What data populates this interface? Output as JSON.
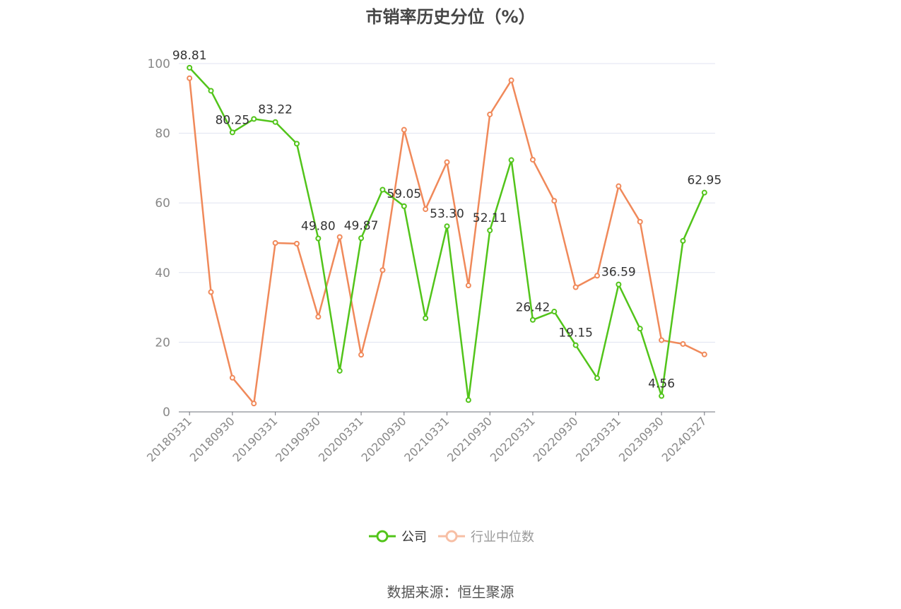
{
  "title": "市销率历史分位（%）",
  "source": "数据来源：恒生聚源",
  "legend": {
    "company": "公司",
    "industry": "行业中位数"
  },
  "colors": {
    "company": "#52c41a",
    "industry": "#f0895a",
    "grid": "#e0e3f0",
    "axis": "#6e7079",
    "tick": "#888888",
    "label": "#333333"
  },
  "chart_data": {
    "type": "line",
    "ylim": [
      0,
      100
    ],
    "yticks": [
      0,
      20,
      40,
      60,
      80,
      100
    ],
    "x": [
      "20180331",
      "20180630",
      "20180930",
      "20181231",
      "20190331",
      "20190630",
      "20190930",
      "20191231",
      "20200331",
      "20200630",
      "20200930",
      "20201231",
      "20210331",
      "20210630",
      "20210930",
      "20211231",
      "20220331",
      "20220630",
      "20220930",
      "20221231",
      "20230331",
      "20230630",
      "20230930",
      "20231231",
      "20240327"
    ],
    "x_tick_labels": [
      "20180331",
      "20180930",
      "20190331",
      "20190930",
      "20200331",
      "20200930",
      "20210331",
      "20210930",
      "20220331",
      "20220930",
      "20230331",
      "20230930",
      "20240327"
    ],
    "series": [
      {
        "name": "公司",
        "values": [
          98.81,
          92.2,
          80.25,
          84.1,
          83.22,
          77.0,
          49.8,
          11.8,
          49.87,
          63.8,
          59.05,
          26.9,
          53.3,
          3.4,
          52.11,
          72.3,
          26.42,
          28.8,
          19.15,
          9.7,
          36.59,
          23.9,
          4.56,
          49.1,
          62.95
        ]
      },
      {
        "name": "行业中位数",
        "values": [
          95.8,
          34.4,
          9.8,
          2.4,
          48.5,
          48.3,
          27.3,
          50.2,
          16.4,
          40.7,
          81.0,
          58.2,
          71.7,
          36.3,
          85.4,
          95.2,
          72.4,
          60.6,
          35.8,
          39.1,
          64.8,
          54.6,
          20.6,
          19.5,
          16.5
        ]
      }
    ],
    "data_labels": [
      {
        "index": 0,
        "text": "98.81"
      },
      {
        "index": 2,
        "text": "80.25"
      },
      {
        "index": 4,
        "text": "83.22"
      },
      {
        "index": 6,
        "text": "49.80"
      },
      {
        "index": 8,
        "text": "49.87"
      },
      {
        "index": 10,
        "text": "59.05"
      },
      {
        "index": 12,
        "text": "53.30"
      },
      {
        "index": 14,
        "text": "52.11"
      },
      {
        "index": 16,
        "text": "26.42"
      },
      {
        "index": 18,
        "text": "19.15"
      },
      {
        "index": 20,
        "text": "36.59"
      },
      {
        "index": 22,
        "text": "4.56"
      },
      {
        "index": 24,
        "text": "62.95"
      }
    ]
  }
}
